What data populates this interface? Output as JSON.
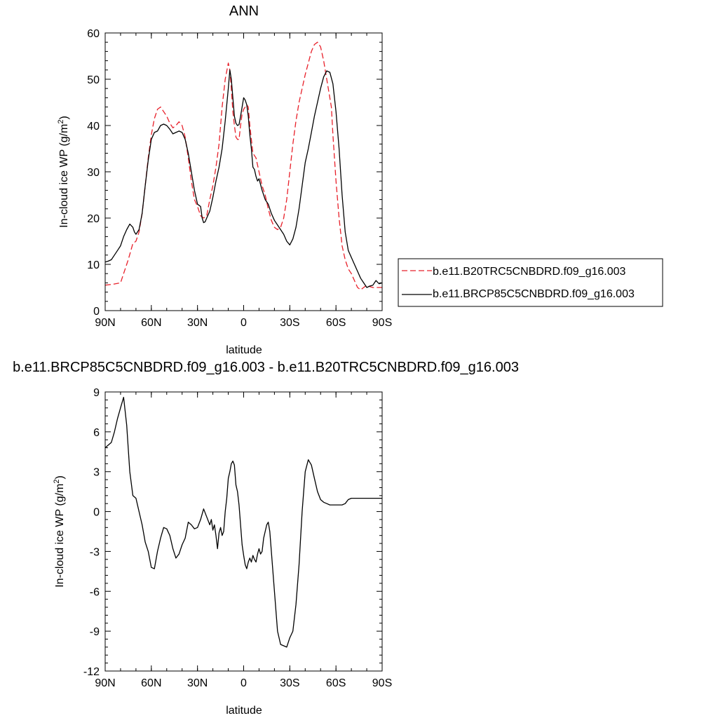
{
  "chart_data": [
    {
      "type": "line",
      "title": "ANN",
      "xlabel": "latitude",
      "ylabel": "In-cloud ice WP (g/m",
      "ylabel_superscript": "2",
      "ylabel_suffix": ")",
      "xlim": [
        90,
        -90
      ],
      "ylim": [
        0,
        60
      ],
      "x_ticks": [
        90,
        60,
        30,
        0,
        -30,
        -60,
        -90
      ],
      "x_tick_labels": [
        "90N",
        "60N",
        "30N",
        "0",
        "30S",
        "60S",
        "90S"
      ],
      "y_ticks": [
        0,
        10,
        20,
        30,
        40,
        50,
        60
      ],
      "y_tick_labels": [
        "0",
        "10",
        "20",
        "30",
        "40",
        "50",
        "60"
      ],
      "legend_position": "right",
      "series": [
        {
          "name": "b.e11.B20TRC5CNBDRD.f09_g16.003",
          "color": "#e8202a",
          "dash": "dashed",
          "x": [
            90,
            85,
            80,
            78,
            75,
            72,
            70,
            68,
            66,
            64,
            62,
            60,
            58,
            56,
            54,
            52,
            50,
            48,
            46,
            44,
            42,
            40,
            38,
            36,
            34,
            32,
            30,
            28,
            26,
            24,
            22,
            20,
            18,
            16,
            14,
            12,
            10,
            9,
            8,
            7,
            6,
            5,
            4,
            3,
            2,
            1,
            0,
            -1,
            -2,
            -3,
            -4,
            -5,
            -6,
            -8,
            -10,
            -12,
            -14,
            -16,
            -18,
            -20,
            -22,
            -24,
            -26,
            -28,
            -30,
            -32,
            -34,
            -36,
            -38,
            -40,
            -42,
            -44,
            -46,
            -48,
            -50,
            -52,
            -54,
            -56,
            -57,
            -58,
            -60,
            -62,
            -64,
            -66,
            -68,
            -70,
            -72,
            -74,
            -76,
            -78,
            -80,
            -82,
            -84,
            -86,
            -88,
            -90
          ],
          "y": [
            5.5,
            5.7,
            6.0,
            8.0,
            11.0,
            14.5,
            15.0,
            17.0,
            21.0,
            27.0,
            33.0,
            38.0,
            41.5,
            43.5,
            44.0,
            43.0,
            42.0,
            40.5,
            39.5,
            40.0,
            40.8,
            40.0,
            37.5,
            33.0,
            28.0,
            24.0,
            22.5,
            20.5,
            20.0,
            20.5,
            24.0,
            27.0,
            31.0,
            36.0,
            44.0,
            50.0,
            53.5,
            52.0,
            48.0,
            43.0,
            40.0,
            37.5,
            37.0,
            37.0,
            40.0,
            42.5,
            43.5,
            44.0,
            44.5,
            44.0,
            40.0,
            37.0,
            34.0,
            33.0,
            30.0,
            27.0,
            25.0,
            22.0,
            19.5,
            18.0,
            17.5,
            18.0,
            20.0,
            24.0,
            30.0,
            36.0,
            41.0,
            45.0,
            48.0,
            51.0,
            53.5,
            56.0,
            57.5,
            58.0,
            57.0,
            54.0,
            50.0,
            46.0,
            44.0,
            38.0,
            28.0,
            20.0,
            14.0,
            11.0,
            9.0,
            8.0,
            6.5,
            5.0,
            4.5,
            5.0,
            5.5,
            5.2,
            5.0,
            5.0,
            5.0,
            5.0
          ]
        },
        {
          "name": "b.e11.BRCP85C5CNBDRD.f09_g16.003",
          "color": "#000000",
          "dash": "solid",
          "x": [
            90,
            88,
            86,
            84,
            82,
            80,
            78,
            76,
            74,
            72,
            71,
            70,
            68,
            66,
            64,
            62,
            60,
            58,
            56,
            54,
            52,
            50,
            48,
            46,
            44,
            42,
            40,
            38,
            36,
            34,
            32,
            30,
            28,
            27,
            26,
            25,
            24,
            22,
            20,
            18,
            16,
            14,
            12,
            10,
            9,
            8,
            7,
            6,
            5,
            4,
            3,
            2,
            1,
            0,
            -1,
            -2,
            -3,
            -4,
            -5,
            -6,
            -7,
            -8,
            -9,
            -10,
            -12,
            -14,
            -16,
            -18,
            -20,
            -22,
            -24,
            -26,
            -28,
            -30,
            -32,
            -34,
            -36,
            -38,
            -40,
            -42,
            -44,
            -46,
            -48,
            -50,
            -52,
            -54,
            -56,
            -58,
            -60,
            -62,
            -64,
            -66,
            -68,
            -70,
            -72,
            -74,
            -76,
            -78,
            -80,
            -82,
            -84,
            -86,
            -88,
            -90
          ],
          "y": [
            10.5,
            10.7,
            11.0,
            12.0,
            13.0,
            14.0,
            16.0,
            17.5,
            18.7,
            18.0,
            17.0,
            16.5,
            17.5,
            21.0,
            27.0,
            32.5,
            37.0,
            38.5,
            38.8,
            40.0,
            40.3,
            40.0,
            39.2,
            38.2,
            38.5,
            38.8,
            38.5,
            37.0,
            34.0,
            30.0,
            26.0,
            23.0,
            22.5,
            20.0,
            19.0,
            19.2,
            20.0,
            21.5,
            24.5,
            28.0,
            31.0,
            35.0,
            41.0,
            48.0,
            52.0,
            50.0,
            46.0,
            42.0,
            40.5,
            40.0,
            40.2,
            42.0,
            44.0,
            46.0,
            45.5,
            44.5,
            42.0,
            38.0,
            35.0,
            31.0,
            30.5,
            29.0,
            28.0,
            28.5,
            26.0,
            24.0,
            23.0,
            21.0,
            19.5,
            18.5,
            17.5,
            16.5,
            15.0,
            14.2,
            15.5,
            18.0,
            22.0,
            27.0,
            32.0,
            35.0,
            38.5,
            42.0,
            45.0,
            48.0,
            50.5,
            51.8,
            51.5,
            49.0,
            43.0,
            35.0,
            25.0,
            17.0,
            13.0,
            11.5,
            10.0,
            8.5,
            7.0,
            6.0,
            5.0,
            5.3,
            5.5,
            6.5,
            5.8,
            6.0
          ]
        }
      ]
    },
    {
      "type": "line",
      "title": "b.e11.BRCP85C5CNBDRD.f09_g16.003 - b.e11.B20TRC5CNBDRD.f09_g16.003",
      "xlabel": "latitude",
      "ylabel": "In-cloud ice WP (g/m",
      "ylabel_superscript": "2",
      "ylabel_suffix": ")",
      "xlim": [
        90,
        -90
      ],
      "ylim": [
        -12,
        9
      ],
      "x_ticks": [
        90,
        60,
        30,
        0,
        -30,
        -60,
        -90
      ],
      "x_tick_labels": [
        "90N",
        "60N",
        "30N",
        "0",
        "30S",
        "60S",
        "90S"
      ],
      "y_ticks": [
        -12,
        -9,
        -6,
        -3,
        0,
        3,
        6,
        9
      ],
      "y_tick_labels": [
        "-12",
        "-9",
        "-6",
        "-3",
        "0",
        "3",
        "6",
        "9"
      ],
      "series": [
        {
          "color": "#000000",
          "dash": "solid",
          "x": [
            90,
            88,
            86,
            84,
            82,
            80,
            78,
            76,
            74,
            72,
            70,
            68,
            66,
            64,
            62,
            60,
            58,
            56,
            55,
            54,
            52,
            50,
            48,
            46,
            44,
            42,
            40,
            38,
            36,
            34,
            32,
            30,
            28,
            26,
            24,
            22,
            21,
            20,
            19,
            18,
            17,
            16,
            15,
            14,
            13,
            12,
            11,
            10,
            9,
            8,
            7,
            6,
            5,
            4,
            3,
            2,
            1,
            0,
            -1,
            -2,
            -3,
            -4,
            -5,
            -6,
            -7,
            -8,
            -9,
            -10,
            -11,
            -12,
            -13,
            -14,
            -15,
            -16,
            -17,
            -18,
            -20,
            -22,
            -24,
            -26,
            -28,
            -30,
            -32,
            -34,
            -36,
            -38,
            -40,
            -42,
            -44,
            -46,
            -48,
            -50,
            -52,
            -54,
            -56,
            -58,
            -60,
            -62,
            -64,
            -66,
            -68,
            -70,
            -72,
            -74,
            -76,
            -78,
            -80,
            -82,
            -84,
            -86,
            -88,
            -90
          ],
          "y": [
            4.8,
            5.0,
            5.2,
            6.0,
            7.0,
            7.8,
            8.6,
            6.5,
            3.0,
            1.2,
            1.0,
            0.0,
            -1.0,
            -2.3,
            -3.0,
            -4.2,
            -4.3,
            -3.0,
            -2.5,
            -2.0,
            -1.2,
            -1.3,
            -1.8,
            -2.8,
            -3.5,
            -3.2,
            -2.5,
            -2.0,
            -0.8,
            -1.0,
            -1.3,
            -1.2,
            -0.6,
            0.2,
            -0.4,
            -1.0,
            -0.6,
            -1.4,
            -1.0,
            -1.8,
            -2.8,
            -1.6,
            -1.2,
            -1.8,
            -1.5,
            0.0,
            1.0,
            2.5,
            3.0,
            3.6,
            3.8,
            3.5,
            2.0,
            1.5,
            0.5,
            -1.0,
            -2.5,
            -3.3,
            -4.0,
            -4.3,
            -3.8,
            -3.5,
            -3.8,
            -3.3,
            -3.6,
            -3.8,
            -3.2,
            -2.8,
            -3.2,
            -3.0,
            -2.0,
            -1.5,
            -1.0,
            -0.8,
            -1.5,
            -3.0,
            -6.0,
            -9.0,
            -10.0,
            -10.1,
            -10.2,
            -9.5,
            -9.0,
            -7.0,
            -4.0,
            0.0,
            3.0,
            3.9,
            3.5,
            2.5,
            1.5,
            0.9,
            0.7,
            0.6,
            0.5,
            0.5,
            0.5,
            0.5,
            0.5,
            0.6,
            0.9,
            1.0,
            1.0,
            1.0,
            1.0,
            1.0,
            1.0,
            1.0,
            1.0,
            1.0,
            1.0,
            1.0
          ]
        }
      ]
    }
  ]
}
